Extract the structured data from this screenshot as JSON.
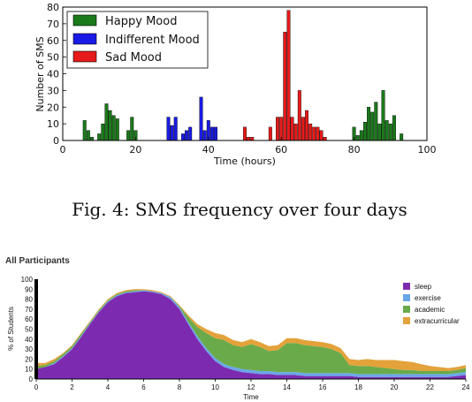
{
  "caption": "Fig. 4: SMS frequency over four days",
  "chart_data": [
    {
      "type": "bar",
      "title": "",
      "xlabel": "Time (hours)",
      "ylabel": "Number of SMS",
      "xlim": [
        0,
        100
      ],
      "ylim": [
        0,
        80
      ],
      "xticks": [
        0,
        20,
        40,
        60,
        80,
        100
      ],
      "yticks": [
        0,
        10,
        20,
        30,
        40,
        50,
        60,
        70,
        80
      ],
      "legend_position": "top-left",
      "series": [
        {
          "name": "Happy Mood",
          "color": "#1a7a1a",
          "x": [
            6,
            7,
            8,
            10,
            11,
            12,
            13,
            14,
            15,
            18,
            19,
            20,
            80,
            81,
            82,
            83,
            84,
            85,
            86,
            87,
            88,
            89,
            90,
            91,
            93
          ],
          "values": [
            12,
            6,
            2,
            4,
            10,
            22,
            18,
            15,
            13,
            6,
            14,
            6,
            8,
            3,
            6,
            11,
            20,
            17,
            23,
            10,
            30,
            12,
            10,
            15,
            4
          ]
        },
        {
          "name": "Indifferent Mood",
          "color": "#1a1ae6",
          "x": [
            29,
            30,
            31,
            33,
            34,
            35,
            38,
            39,
            40,
            41,
            42
          ],
          "values": [
            14,
            9,
            14,
            4,
            6,
            8,
            26,
            6,
            12,
            8,
            8
          ]
        },
        {
          "name": "Sad Mood",
          "color": "#e61a1a",
          "x": [
            50,
            51,
            52,
            57,
            59,
            60,
            61,
            62,
            63,
            64,
            65,
            66,
            67,
            68,
            69,
            70,
            71,
            72
          ],
          "values": [
            8,
            2,
            2,
            8,
            14,
            14,
            65,
            78,
            14,
            10,
            30,
            14,
            18,
            10,
            8,
            8,
            6,
            2
          ]
        }
      ]
    },
    {
      "type": "area",
      "title": "All Participants",
      "xlabel": "Time",
      "ylabel": "% of Students",
      "xlim": [
        0,
        24
      ],
      "ylim": [
        0,
        100
      ],
      "xticks": [
        0,
        2,
        4,
        6,
        8,
        10,
        12,
        14,
        16,
        18,
        20,
        22,
        24
      ],
      "yticks": [
        0,
        10,
        20,
        30,
        40,
        50,
        60,
        70,
        80,
        90,
        100
      ],
      "stacked": true,
      "legend_position": "top-right",
      "x": [
        0,
        0.5,
        1,
        1.5,
        2,
        2.5,
        3,
        3.5,
        4,
        4.5,
        5,
        5.5,
        6,
        6.5,
        7,
        7.5,
        8,
        8.5,
        9,
        9.5,
        10,
        10.5,
        11,
        11.5,
        12,
        12.5,
        13,
        13.5,
        14,
        14.5,
        15,
        15.5,
        16,
        16.5,
        17,
        17.5,
        18,
        18.5,
        19,
        19.5,
        20,
        20.5,
        21,
        21.5,
        22,
        22.5,
        23,
        23.5,
        24
      ],
      "series": [
        {
          "name": "sleep",
          "color": "#7c2bb0",
          "values": [
            10,
            12,
            15,
            22,
            30,
            42,
            55,
            67,
            77,
            83,
            86,
            87,
            88,
            87,
            85,
            80,
            70,
            55,
            40,
            28,
            18,
            12,
            9,
            7,
            6,
            5,
            5,
            4,
            4,
            4,
            3,
            3,
            3,
            3,
            3,
            3,
            2,
            2,
            2,
            2,
            2,
            2,
            2,
            2,
            2,
            2,
            2,
            3,
            4
          ]
        },
        {
          "name": "exercise",
          "color": "#6aa6e8",
          "values": [
            0,
            0,
            1,
            1,
            1,
            1,
            1,
            1,
            1,
            1,
            1,
            1,
            1,
            1,
            1,
            2,
            2,
            2,
            3,
            3,
            3,
            3,
            3,
            3,
            3,
            3,
            3,
            3,
            3,
            3,
            3,
            3,
            3,
            3,
            3,
            3,
            3,
            3,
            3,
            3,
            3,
            3,
            3,
            3,
            3,
            3,
            3,
            3,
            3
          ]
        },
        {
          "name": "academic",
          "color": "#6aaa4a",
          "values": [
            3,
            2,
            2,
            2,
            2,
            2,
            1,
            1,
            1,
            1,
            1,
            1,
            0,
            0,
            0,
            0,
            1,
            5,
            9,
            15,
            20,
            24,
            22,
            22,
            26,
            24,
            20,
            22,
            29,
            29,
            28,
            27,
            26,
            24,
            20,
            8,
            8,
            8,
            7,
            6,
            5,
            4,
            4,
            3,
            3,
            3,
            3,
            3,
            4
          ]
        },
        {
          "name": "extracurricular",
          "color": "#e3a23a",
          "values": [
            3,
            2,
            2,
            1,
            1,
            1,
            1,
            1,
            1,
            1,
            1,
            1,
            1,
            1,
            1,
            1,
            1,
            2,
            3,
            4,
            5,
            5,
            5,
            5,
            5,
            5,
            5,
            5,
            5,
            5,
            5,
            5,
            5,
            5,
            5,
            6,
            6,
            7,
            7,
            8,
            9,
            9,
            8,
            7,
            5,
            4,
            3,
            3,
            3
          ]
        }
      ]
    }
  ]
}
